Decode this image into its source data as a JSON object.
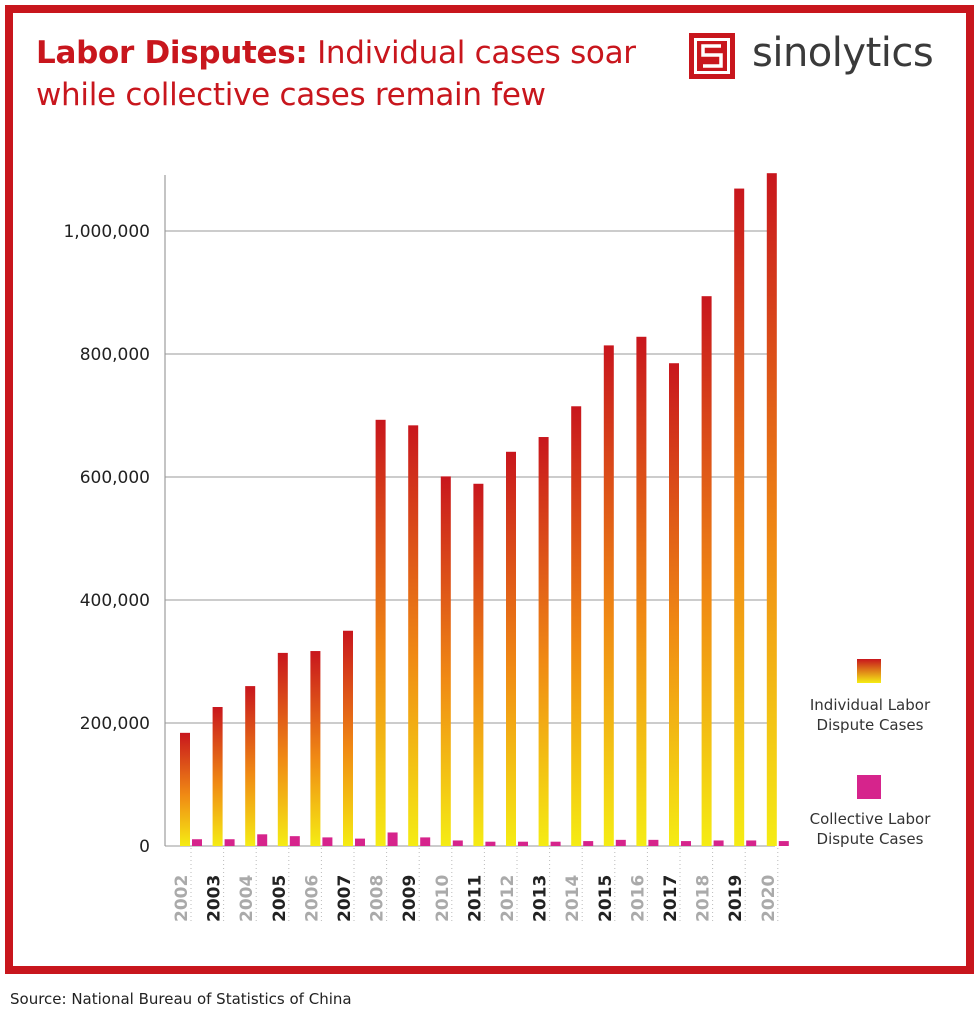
{
  "header": {
    "title_bold": "Labor Disputes:",
    "title_rest": " Individual cases soar while collective cases remain few"
  },
  "brand": {
    "name": "sinolytics",
    "logo_icon": "sinolytics-s-logo-icon",
    "color": "#c8161d"
  },
  "source": "Source: National Bureau of Statistics of China",
  "chart_data": {
    "type": "bar",
    "title": "Labor Disputes: Individual cases soar while collective cases remain few",
    "xlabel": "",
    "ylabel": "",
    "ylim": [
      0,
      1100000
    ],
    "yticks": [
      0,
      200000,
      400000,
      600000,
      800000,
      1000000
    ],
    "ytick_labels": [
      "0",
      "200,000",
      "400,000",
      "600,000",
      "800,000",
      "1,000,000"
    ],
    "grid": true,
    "legend_position": "right",
    "categories": [
      "2002",
      "2003",
      "2004",
      "2005",
      "2006",
      "2007",
      "2008",
      "2009",
      "2010",
      "2011",
      "2012",
      "2013",
      "2014",
      "2015",
      "2016",
      "2017",
      "2018",
      "2019",
      "2020"
    ],
    "series": [
      {
        "name": "Individual Labor Dispute Cases",
        "color_top": "#c8161d",
        "color_bottom": "#f5ec14",
        "values": [
          184000,
          226000,
          260000,
          314000,
          317000,
          350000,
          693000,
          684000,
          601000,
          589000,
          641000,
          665000,
          715000,
          814000,
          828000,
          785000,
          894000,
          1069000,
          1094000
        ]
      },
      {
        "name": "Collective Labor Dispute Cases",
        "color": "#d6248c",
        "values": [
          11000,
          11000,
          19000,
          16000,
          14000,
          12000,
          22000,
          14000,
          9000,
          7000,
          7000,
          7000,
          8000,
          10000,
          10000,
          8000,
          9000,
          9000,
          8000
        ]
      }
    ],
    "label_colors": {
      "dark": "#222222",
      "light": "#aaaaaa"
    }
  }
}
